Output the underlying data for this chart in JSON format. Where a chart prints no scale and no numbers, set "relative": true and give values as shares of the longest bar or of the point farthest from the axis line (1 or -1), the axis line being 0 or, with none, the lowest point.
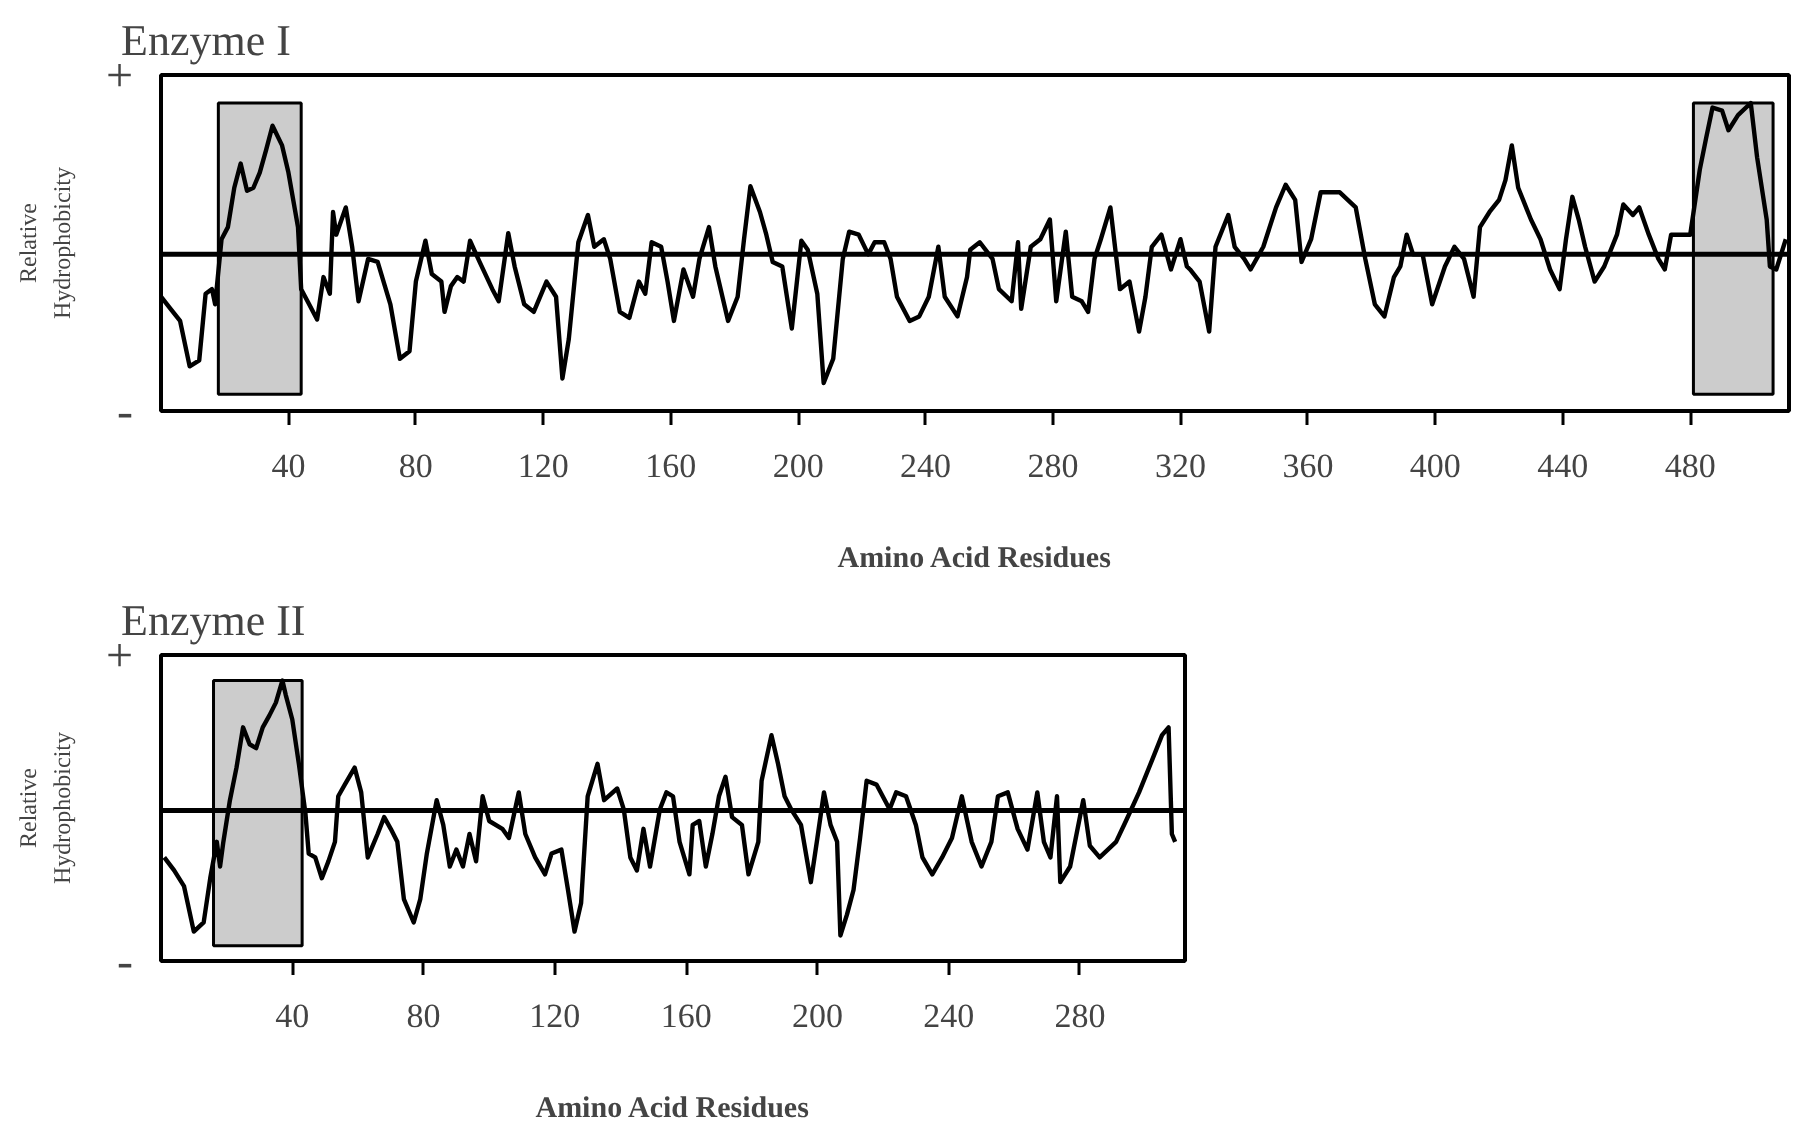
{
  "chart_data": [
    {
      "type": "line",
      "title": "Enzyme I",
      "xlabel": "Amino Acid Residues",
      "ylabel": "Relative\nHydrophobicity",
      "relative": true,
      "annotations": [
        "+",
        "-"
      ],
      "grid": false,
      "marker": "none",
      "line_style": "solid",
      "xlim": [
        0,
        511
      ],
      "xticks": [
        40,
        80,
        120,
        160,
        200,
        240,
        280,
        320,
        360,
        400,
        440,
        480
      ],
      "ref_lines": [
        {
          "axis": "y",
          "value": 0,
          "color": "#000000"
        }
      ],
      "bands": [
        {
          "axis": "x",
          "from": 18,
          "to": 44,
          "color": "#cccccc"
        },
        {
          "axis": "x",
          "from": 481,
          "to": 506,
          "color": "#cccccc"
        }
      ],
      "series": [
        {
          "color": "#000000",
          "x": [
            0,
            3,
            6,
            9,
            12,
            14,
            16,
            17,
            19,
            21,
            23,
            25,
            27,
            29,
            31,
            33,
            35,
            38,
            40,
            43,
            44,
            46,
            49,
            51,
            53,
            54,
            55,
            58,
            60,
            62,
            65,
            68,
            72,
            75,
            78,
            80,
            83,
            85,
            88,
            89,
            91,
            93,
            95,
            97,
            100,
            104,
            106,
            109,
            111,
            114,
            117,
            121,
            124,
            126,
            128,
            131,
            134,
            136,
            139,
            141,
            144,
            147,
            150,
            152,
            154,
            157,
            159,
            161,
            164,
            167,
            169,
            172,
            174,
            178,
            181,
            183,
            185,
            188,
            190,
            192,
            195,
            198,
            201,
            203,
            206,
            208,
            211,
            214,
            216,
            219,
            222,
            224,
            227,
            229,
            231,
            235,
            238,
            241,
            244,
            246,
            250,
            253,
            254,
            257,
            261,
            263,
            267,
            269,
            270,
            273,
            276,
            279,
            281,
            284,
            286,
            289,
            291,
            293,
            295,
            298,
            301,
            304,
            307,
            309,
            311,
            314,
            317,
            320,
            322,
            323,
            326,
            329,
            331,
            335,
            337,
            340,
            342,
            346,
            350,
            353,
            356,
            358,
            361,
            364,
            370,
            375,
            378,
            381,
            384,
            387,
            389,
            391,
            393,
            396,
            399,
            403,
            406,
            409,
            412,
            414,
            417,
            420,
            422,
            424,
            426,
            430,
            433,
            436,
            439,
            441,
            443,
            445,
            447,
            450,
            453,
            457,
            459,
            462,
            464,
            467,
            470,
            472,
            474,
            477,
            480,
            483,
            485,
            487,
            490,
            492,
            495,
            499,
            501,
            504,
            505,
            507,
            510
          ],
          "values": [
            -0.28,
            -0.36,
            -0.44,
            -0.74,
            -0.7,
            -0.26,
            -0.23,
            -0.33,
            0.1,
            0.18,
            0.44,
            0.6,
            0.42,
            0.44,
            0.54,
            0.69,
            0.85,
            0.72,
            0.54,
            0.18,
            -0.23,
            -0.31,
            -0.43,
            -0.15,
            -0.26,
            0.28,
            0.13,
            0.31,
            0.05,
            -0.31,
            -0.03,
            -0.05,
            -0.33,
            -0.69,
            -0.64,
            -0.18,
            0.09,
            -0.13,
            -0.18,
            -0.38,
            -0.21,
            -0.15,
            -0.18,
            0.09,
            -0.05,
            -0.23,
            -0.31,
            0.14,
            -0.08,
            -0.33,
            -0.38,
            -0.18,
            -0.28,
            -0.82,
            -0.56,
            0.08,
            0.26,
            0.05,
            0.1,
            -0.03,
            -0.38,
            -0.42,
            -0.18,
            -0.26,
            0.08,
            0.05,
            -0.18,
            -0.44,
            -0.1,
            -0.28,
            -0.03,
            0.18,
            -0.08,
            -0.44,
            -0.28,
            0.1,
            0.45,
            0.28,
            0.13,
            -0.05,
            -0.08,
            -0.49,
            0.09,
            0.03,
            -0.26,
            -0.85,
            -0.69,
            -0.03,
            0.15,
            0.13,
            0.0,
            0.08,
            0.08,
            -0.03,
            -0.28,
            -0.44,
            -0.41,
            -0.28,
            0.05,
            -0.28,
            -0.41,
            -0.15,
            0.03,
            0.08,
            -0.03,
            -0.23,
            -0.31,
            0.08,
            -0.36,
            0.05,
            0.1,
            0.23,
            -0.31,
            0.15,
            -0.28,
            -0.31,
            -0.38,
            -0.03,
            0.1,
            0.31,
            -0.23,
            -0.18,
            -0.51,
            -0.28,
            0.05,
            0.13,
            -0.1,
            0.1,
            -0.08,
            -0.1,
            -0.18,
            -0.51,
            0.05,
            0.26,
            0.05,
            -0.03,
            -0.1,
            0.05,
            0.31,
            0.46,
            0.36,
            -0.05,
            0.1,
            0.41,
            0.41,
            0.31,
            -0.03,
            -0.33,
            -0.41,
            -0.15,
            -0.08,
            0.13,
            0.0,
            0.0,
            -0.33,
            -0.08,
            0.05,
            -0.03,
            -0.28,
            0.18,
            0.28,
            0.36,
            0.49,
            0.72,
            0.44,
            0.23,
            0.1,
            -0.1,
            -0.23,
            0.1,
            0.38,
            0.23,
            0.05,
            -0.18,
            -0.08,
            0.13,
            0.33,
            0.26,
            0.31,
            0.13,
            -0.03,
            -0.1,
            0.13,
            0.13,
            0.13,
            0.56,
            0.77,
            0.97,
            0.95,
            0.82,
            0.92,
            1.0,
            0.64,
            0.23,
            -0.08,
            -0.1,
            0.1
          ]
        }
      ]
    },
    {
      "type": "line",
      "title": "Enzyme II",
      "xlabel": "Amino Acid Residues",
      "ylabel": "Relative\nHydrophobicity",
      "relative": true,
      "annotations": [
        "+",
        "-"
      ],
      "grid": false,
      "marker": "none",
      "line_style": "solid",
      "xlim": [
        0,
        312
      ],
      "xticks": [
        40,
        80,
        120,
        160,
        200,
        240,
        280
      ],
      "ref_lines": [
        {
          "axis": "y",
          "value": 0,
          "color": "#000000"
        }
      ],
      "bands": [
        {
          "axis": "x",
          "from": 16,
          "to": 43,
          "color": "#cccccc"
        }
      ],
      "series": [
        {
          "color": "#000000",
          "x": [
            1,
            4,
            7,
            10,
            13,
            15,
            17,
            18,
            19,
            21,
            23,
            25,
            27,
            29,
            31,
            33,
            35,
            37,
            38,
            40,
            42,
            44,
            45,
            47,
            49,
            51,
            53,
            54,
            56,
            59,
            61,
            62,
            63,
            66,
            68,
            70,
            72,
            74,
            77,
            79,
            81,
            84,
            86,
            88,
            90,
            92,
            94,
            96,
            98,
            100,
            104,
            106,
            109,
            111,
            114,
            117,
            119,
            122,
            124,
            126,
            128,
            130,
            133,
            135,
            139,
            141,
            143,
            145,
            147,
            149,
            152,
            154,
            156,
            158,
            161,
            162,
            164,
            166,
            168,
            170,
            172,
            174,
            177,
            179,
            182,
            183,
            186,
            188,
            190,
            192,
            195,
            198,
            200,
            202,
            204,
            206,
            207,
            209,
            211,
            213,
            215,
            218,
            222,
            224,
            227,
            230,
            232,
            235,
            238,
            241,
            244,
            247,
            250,
            253,
            255,
            258,
            261,
            264,
            267,
            269,
            271,
            273,
            274,
            277,
            281,
            283,
            286,
            291,
            294,
            298,
            302,
            305,
            307,
            308,
            309
          ],
          "values": [
            -0.36,
            -0.46,
            -0.58,
            -0.93,
            -0.86,
            -0.52,
            -0.24,
            -0.43,
            -0.24,
            0.08,
            0.33,
            0.64,
            0.51,
            0.48,
            0.64,
            0.73,
            0.83,
            1.0,
            0.89,
            0.7,
            0.36,
            -0.02,
            -0.33,
            -0.36,
            -0.52,
            -0.39,
            -0.24,
            0.11,
            0.2,
            0.33,
            0.14,
            -0.11,
            -0.36,
            -0.18,
            -0.05,
            -0.14,
            -0.24,
            -0.68,
            -0.86,
            -0.68,
            -0.33,
            0.08,
            -0.11,
            -0.43,
            -0.3,
            -0.43,
            -0.18,
            -0.39,
            0.11,
            -0.08,
            -0.14,
            -0.21,
            0.14,
            -0.18,
            -0.36,
            -0.49,
            -0.33,
            -0.3,
            -0.61,
            -0.93,
            -0.71,
            0.11,
            0.36,
            0.08,
            0.17,
            0.01,
            -0.36,
            -0.46,
            -0.14,
            -0.43,
            0.01,
            0.14,
            0.11,
            -0.24,
            -0.49,
            -0.11,
            -0.08,
            -0.43,
            -0.18,
            0.11,
            0.26,
            -0.05,
            -0.11,
            -0.49,
            -0.24,
            0.23,
            0.58,
            0.36,
            0.11,
            0.01,
            -0.11,
            -0.55,
            -0.21,
            0.14,
            -0.11,
            -0.24,
            -0.96,
            -0.8,
            -0.61,
            -0.21,
            0.23,
            0.2,
            0.01,
            0.14,
            0.11,
            -0.11,
            -0.36,
            -0.49,
            -0.36,
            -0.21,
            0.11,
            -0.24,
            -0.43,
            -0.24,
            0.11,
            0.14,
            -0.14,
            -0.3,
            0.14,
            -0.24,
            -0.36,
            0.11,
            -0.55,
            -0.43,
            0.08,
            -0.27,
            -0.36,
            -0.24,
            -0.08,
            0.14,
            0.39,
            0.58,
            0.64,
            -0.18,
            -0.24
          ]
        }
      ]
    }
  ]
}
